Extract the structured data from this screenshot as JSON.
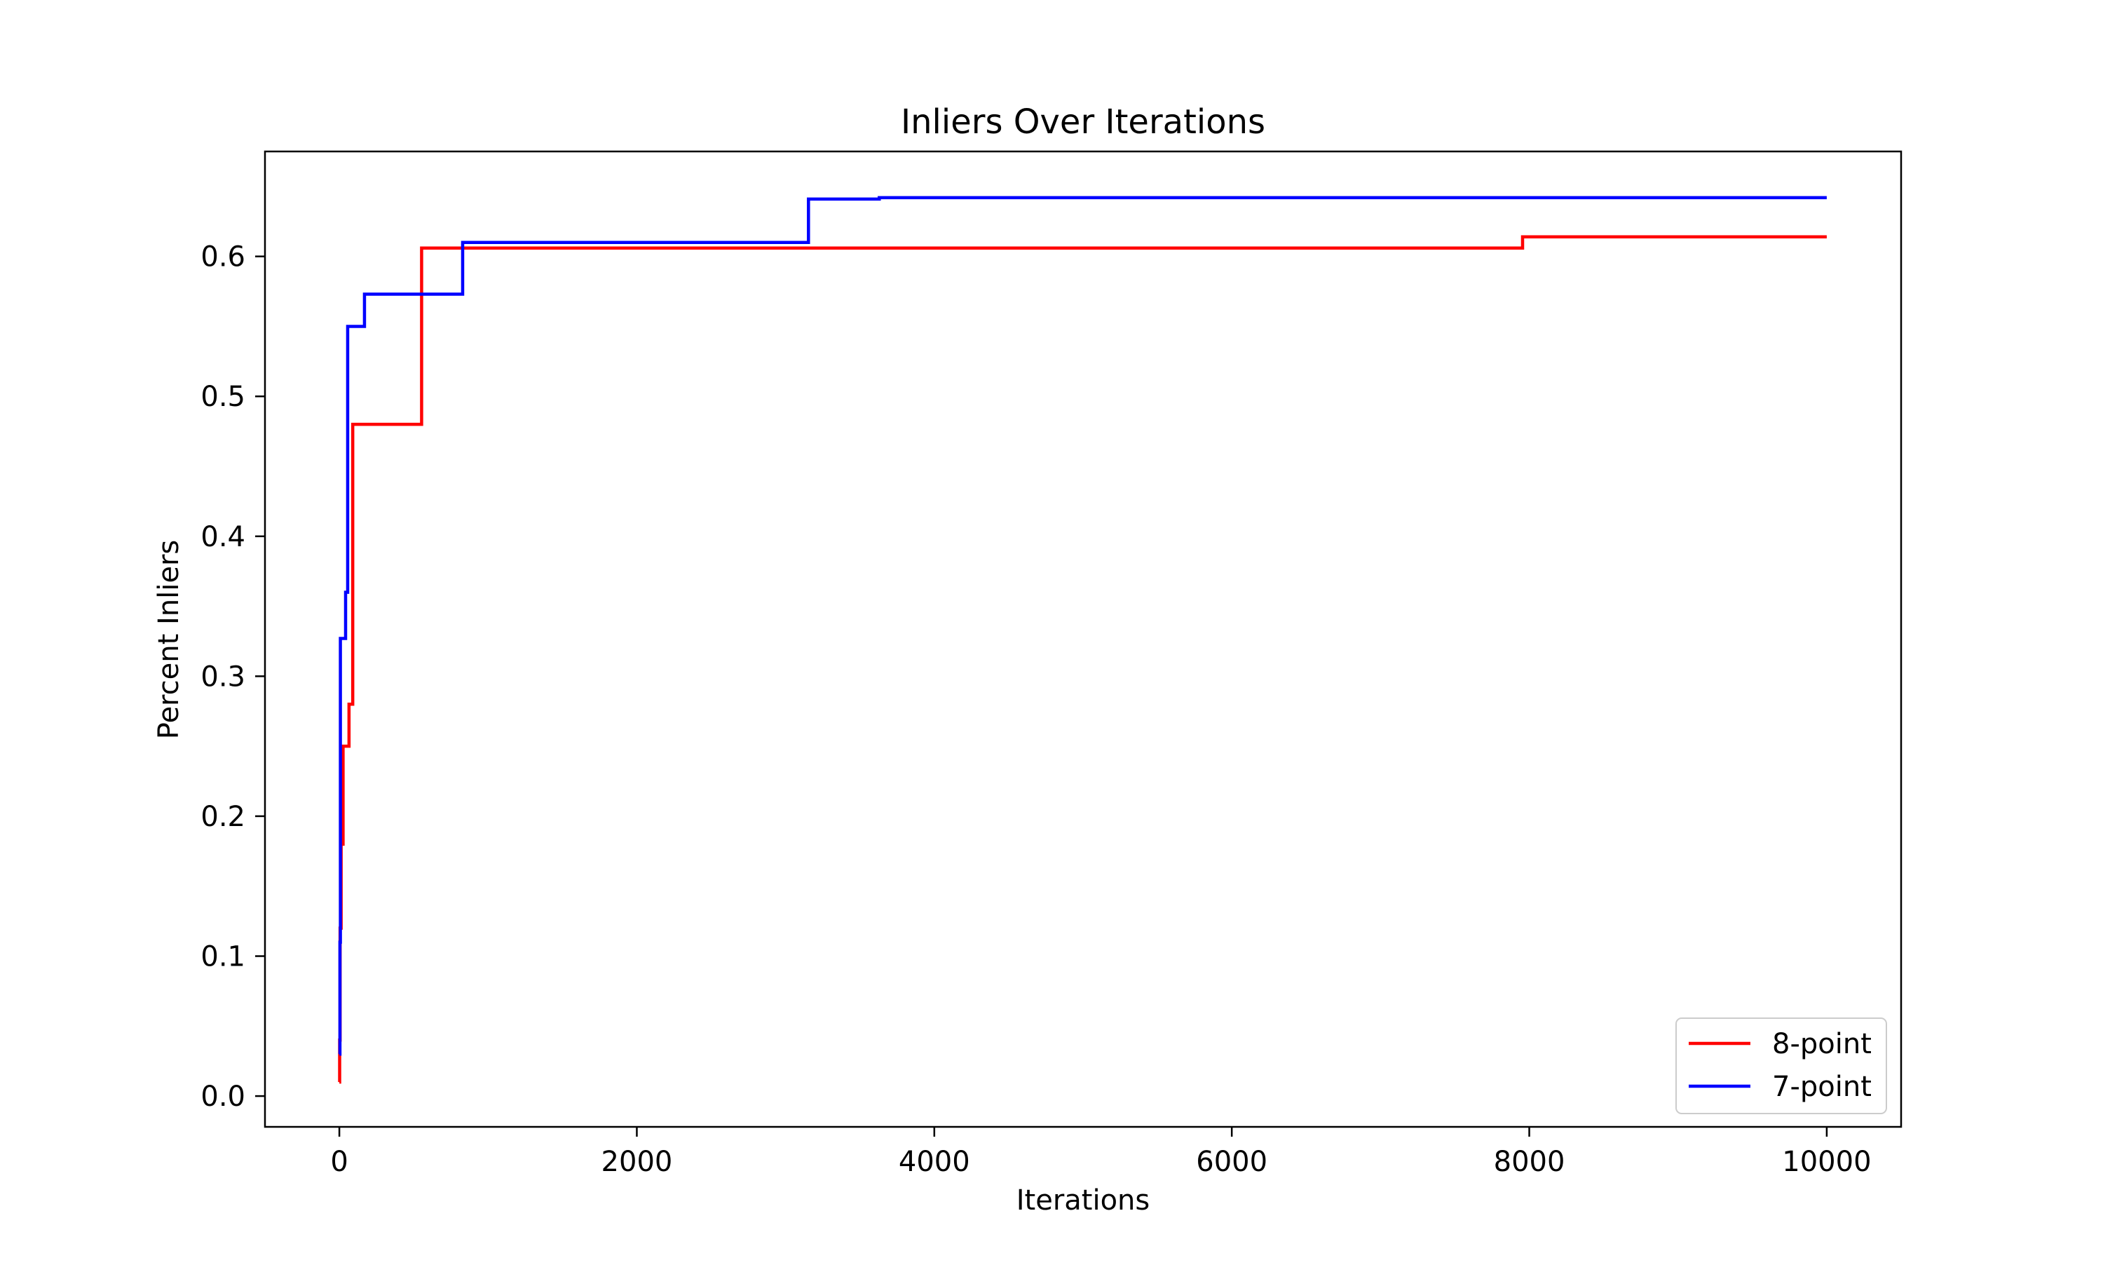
{
  "chart_data": {
    "type": "line",
    "title": "Inliers Over Iterations",
    "xlabel": "Iterations",
    "ylabel": "Percent Inliers",
    "xlim": [
      -500,
      10500
    ],
    "ylim": [
      -0.022,
      0.675
    ],
    "xticks": [
      0,
      2000,
      4000,
      6000,
      8000,
      10000
    ],
    "yticks": [
      0.0,
      0.1,
      0.2,
      0.3,
      0.4,
      0.5,
      0.6
    ],
    "xtick_labels": [
      "0",
      "2000",
      "4000",
      "6000",
      "8000",
      "10000"
    ],
    "ytick_labels": [
      "0.0",
      "0.1",
      "0.2",
      "0.3",
      "0.4",
      "0.5",
      "0.6"
    ],
    "grid": false,
    "legend_position": "lower right",
    "series": [
      {
        "name": "8-point",
        "color": "#ff0000",
        "step": true,
        "points": [
          [
            0,
            0.01
          ],
          [
            2,
            0.04
          ],
          [
            5,
            0.12
          ],
          [
            12,
            0.18
          ],
          [
            25,
            0.25
          ],
          [
            60,
            0.25
          ],
          [
            65,
            0.28
          ],
          [
            85,
            0.28
          ],
          [
            90,
            0.48
          ],
          [
            548,
            0.48
          ],
          [
            553,
            0.606
          ],
          [
            7950,
            0.606
          ],
          [
            7955,
            0.614
          ],
          [
            10000,
            0.614
          ]
        ]
      },
      {
        "name": "7-point",
        "color": "#0000ff",
        "step": true,
        "points": [
          [
            0,
            0.03
          ],
          [
            4,
            0.11
          ],
          [
            7,
            0.327
          ],
          [
            38,
            0.327
          ],
          [
            42,
            0.36
          ],
          [
            52,
            0.36
          ],
          [
            56,
            0.55
          ],
          [
            165,
            0.55
          ],
          [
            169,
            0.573
          ],
          [
            825,
            0.573
          ],
          [
            829,
            0.61
          ],
          [
            3150,
            0.61
          ],
          [
            3154,
            0.641
          ],
          [
            3625,
            0.641
          ],
          [
            3630,
            0.642
          ],
          [
            10000,
            0.642
          ]
        ]
      }
    ]
  }
}
